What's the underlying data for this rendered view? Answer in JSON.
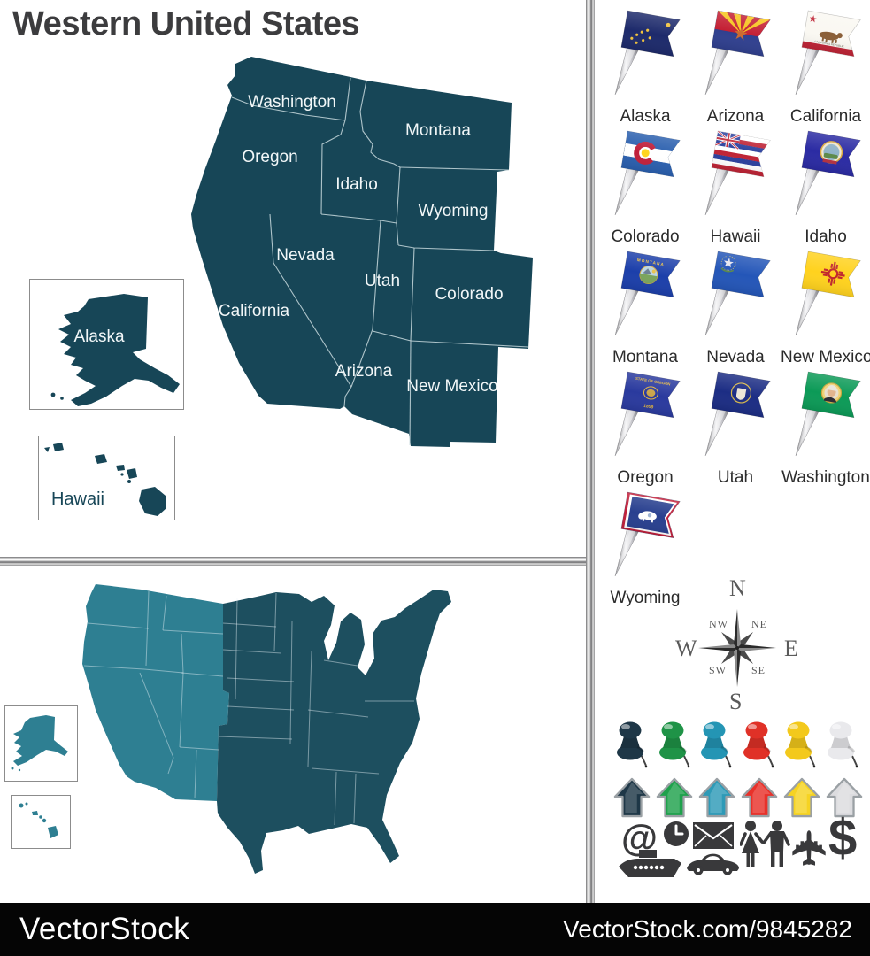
{
  "title": "Western United States",
  "map": {
    "states": [
      "Washington",
      "Montana",
      "Oregon",
      "Idaho",
      "Wyoming",
      "Nevada",
      "Utah",
      "Colorado",
      "California",
      "Arizona",
      "New Mexico"
    ],
    "alaska_label": "Alaska",
    "hawaii_label": "Hawaii",
    "colors": {
      "main": "#174657",
      "us_west": "#2e7f92",
      "us_east": "#1d4f5f",
      "label": "#f2f7f8"
    }
  },
  "flags": [
    {
      "label": "Alaska",
      "bg": "#1d2a6b",
      "style": "alaska"
    },
    {
      "label": "Arizona",
      "bg": "#30408f",
      "style": "arizona"
    },
    {
      "label": "California",
      "bg": "#faf8f2",
      "style": "california",
      "emblem_text": "CALIFORNIA REPUBLIC"
    },
    {
      "label": "Colorado",
      "bg": "#2a5fae",
      "style": "colorado"
    },
    {
      "label": "Hawaii",
      "bg": "#ffffff",
      "style": "hawaii"
    },
    {
      "label": "Idaho",
      "bg": "#2b2ba3",
      "style": "idaho"
    },
    {
      "label": "Montana",
      "bg": "#1c3faa",
      "style": "montana",
      "emblem_text": "MONTANA"
    },
    {
      "label": "Nevada",
      "bg": "#2456b8",
      "style": "nevada"
    },
    {
      "label": "New Mexico",
      "bg": "#ffd21e",
      "style": "newmexico"
    },
    {
      "label": "Oregon",
      "bg": "#2a3a9e",
      "style": "oregon",
      "emblem_text": "STATE OF OREGON",
      "emblem_text2": "1859"
    },
    {
      "label": "Utah",
      "bg": "#1c2d84",
      "style": "utah"
    },
    {
      "label": "Washington",
      "bg": "#0c9a57",
      "style": "washington"
    },
    {
      "label": "Wyoming",
      "bg": "#29408f",
      "style": "wyoming"
    }
  ],
  "compass": {
    "n": "N",
    "ne": "NE",
    "e": "E",
    "se": "SE",
    "s": "S",
    "sw": "SW",
    "w": "W",
    "nw": "NW"
  },
  "pins": {
    "names": [
      "navy",
      "green",
      "teal",
      "red",
      "yellow",
      "white"
    ],
    "colors": [
      "#1e3747",
      "#1f9347",
      "#2495b4",
      "#e03127",
      "#f3c91c",
      "#e9e9ec"
    ]
  },
  "arrows": {
    "names": [
      "navy",
      "green",
      "teal",
      "red",
      "yellow",
      "silver"
    ],
    "colors": [
      "#1e3747",
      "#1fa14c",
      "#2e9ab7",
      "#e8312a",
      "#f6d322",
      "#dcdcdf"
    ]
  },
  "glyphs": {
    "at": "@",
    "dollar": "$",
    "plane": "✈"
  },
  "icons": [
    "at-symbol",
    "clock",
    "envelope",
    "couple",
    "airplane",
    "dollar",
    "ship",
    "car"
  ],
  "footer": {
    "brand": "VectorStock",
    "credit": "VectorStock.com/9845282"
  }
}
